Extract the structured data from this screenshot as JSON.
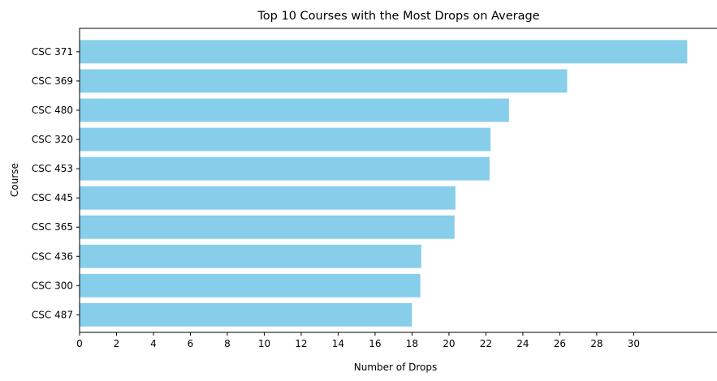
{
  "chart_data": {
    "type": "bar",
    "orientation": "horizontal",
    "title": "Top 10 Courses with the Most Drops on Average",
    "xlabel": "Number of Drops",
    "ylabel": "Course",
    "categories": [
      "CSC 371",
      "CSC 369",
      "CSC 480",
      "CSC 320",
      "CSC 453",
      "CSC 445",
      "CSC 365",
      "CSC 436",
      "CSC 300",
      "CSC 487"
    ],
    "values": [
      32.9,
      26.4,
      23.25,
      22.25,
      22.2,
      20.35,
      20.3,
      18.5,
      18.45,
      18.0
    ],
    "xticks": [
      0,
      2,
      4,
      6,
      8,
      10,
      12,
      14,
      16,
      18,
      20,
      22,
      24,
      26,
      28,
      30
    ],
    "xlim": [
      0,
      34.6
    ],
    "bar_color": "#87ceeb",
    "grid": false,
    "legend": "none"
  }
}
